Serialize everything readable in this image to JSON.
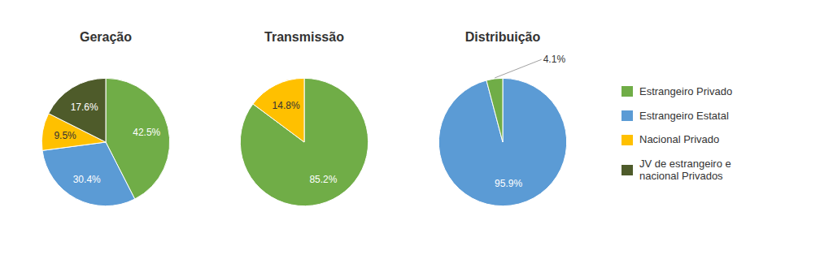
{
  "chart_data": [
    {
      "type": "pie",
      "title": "Geração",
      "categories": [
        "Estrangeiro Privado",
        "Estrangeiro Estatal",
        "Nacional Privado",
        "JV de estrangeiro e\nnacional Privados"
      ],
      "values": [
        42.5,
        30.4,
        9.5,
        17.6
      ],
      "value_labels": [
        "42.5%",
        "30.4%",
        "9.5%",
        "17.6%"
      ],
      "colors": [
        "#70ad47",
        "#5b9bd5",
        "#ffc000",
        "#4e5b2a"
      ],
      "data_labels": true,
      "legend": "right"
    },
    {
      "type": "pie",
      "title": "Transmissão",
      "categories": [
        "Estrangeiro Privado",
        "Nacional Privado"
      ],
      "values": [
        85.2,
        14.8
      ],
      "value_labels": [
        "85.2%",
        "14.8%"
      ],
      "colors": [
        "#70ad47",
        "#ffc000"
      ],
      "data_labels": true,
      "legend": "right"
    },
    {
      "type": "pie",
      "title": "Distribuição",
      "categories": [
        "Estrangeiro Estatal",
        "Estrangeiro Privado"
      ],
      "values": [
        95.9,
        4.1
      ],
      "value_labels": [
        "95.9%",
        "4.1%"
      ],
      "colors": [
        "#5b9bd5",
        "#70ad47"
      ],
      "data_labels": true,
      "legend": "right"
    }
  ]
}
